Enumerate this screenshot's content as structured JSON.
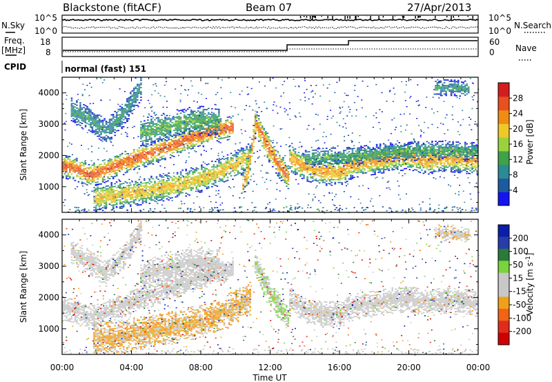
{
  "header": {
    "station": "Blackstone (fitACF)",
    "beam": "Beam 07",
    "date": "27/Apr/2013"
  },
  "top_panels": {
    "nsky_label": "N.Sky",
    "nsearch_label": "N.Search",
    "noise_ticks": [
      "10^5",
      "10^0"
    ],
    "freq_label": "Freq.",
    "freq_unit": "[MHz]",
    "freq_ticks": [
      "18",
      "8"
    ],
    "nave_label": "Nave",
    "nave_ticks": [
      "60",
      "0"
    ],
    "cpid_label": "CPID",
    "cpid_value": "normal (fast) 151"
  },
  "colors": {
    "power": [
      "#1414f0",
      "#1e5aa0",
      "#2a8a96",
      "#3ea24a",
      "#9ad23c",
      "#f0c828",
      "#f08c14",
      "#e8501e",
      "#d21e1e"
    ],
    "velocity": [
      "#0a1eaa",
      "#283caa",
      "#2a7a3a",
      "#7ad23c",
      "#c8c8c8",
      "#c8c8c8",
      "#f0a018",
      "#f06414",
      "#e02c1c",
      "#d00000"
    ]
  },
  "chart_data": [
    {
      "type": "heatmap",
      "quantity": "Power",
      "ylabel": "Slant Range [km]",
      "ylim": [
        180,
        4500
      ],
      "yticks": [
        "1000",
        "2000",
        "3000",
        "4000"
      ],
      "colorbar_label": "Power [dB]",
      "colorbar_ticks": [
        "4",
        "8",
        "12",
        "16",
        "20",
        "24",
        "28"
      ],
      "colorbar_range": [
        0,
        32
      ],
      "xlim": [
        0,
        24
      ],
      "bands": [
        {
          "t": [
            0,
            0.8,
            1.5,
            2.2,
            3,
            4,
            5,
            6,
            7,
            8,
            9,
            9.8
          ],
          "r": [
            1650,
            1550,
            1350,
            1450,
            1650,
            1850,
            2050,
            2250,
            2450,
            2650,
            2800,
            2900
          ],
          "w": 380,
          "peak": 26
        },
        {
          "t": [
            1.8,
            3,
            4,
            5,
            6,
            7,
            8,
            9,
            10,
            10.8
          ],
          "r": [
            620,
            700,
            800,
            880,
            980,
            1100,
            1250,
            1450,
            1700,
            1950
          ],
          "w": 430,
          "peak": 20
        },
        {
          "t": [
            0.5,
            1.5,
            2.5,
            3.5,
            4.5
          ],
          "r": [
            3450,
            3150,
            2750,
            3300,
            4150
          ],
          "w": 400,
          "peak": 10
        },
        {
          "t": [
            4.5,
            6,
            7,
            8,
            9
          ],
          "r": [
            2700,
            2900,
            3050,
            3100,
            3050
          ],
          "w": 450,
          "peak": 13
        },
        {
          "t": [
            11.1,
            11.6,
            12.1,
            12.6,
            13
          ],
          "r": [
            3100,
            2500,
            2000,
            1600,
            1300
          ],
          "w": 420,
          "peak": 25
        },
        {
          "t": [
            10.4,
            10.7,
            10.9,
            11.1
          ],
          "r": [
            1050,
            1500,
            2200,
            2900
          ],
          "w": 420,
          "peak": 23
        },
        {
          "t": [
            13.1,
            14,
            15,
            16,
            16.8,
            18,
            19,
            20,
            21,
            22,
            23,
            24
          ],
          "r": [
            1900,
            1600,
            1450,
            1450,
            1700,
            1800,
            1900,
            1950,
            1800,
            1900,
            1850,
            1800
          ],
          "w": 420,
          "peak": 22
        },
        {
          "t": [
            14,
            16.5,
            19,
            21.5,
            24
          ],
          "r": [
            1900,
            1950,
            2100,
            2150,
            2100
          ],
          "w": 300,
          "peak": 12
        },
        {
          "t": [
            21.5,
            22.5,
            23.5
          ],
          "r": [
            4150,
            4150,
            4100
          ],
          "w": 250,
          "peak": 10
        }
      ]
    },
    {
      "type": "heatmap",
      "quantity": "Velocity",
      "ylabel": "Slant Range [km]",
      "ylim": [
        180,
        4500
      ],
      "yticks": [
        "1000",
        "2000",
        "3000",
        "4000"
      ],
      "colorbar_label": "Velocity [m s^-1]",
      "colorbar_ticks": [
        "200",
        "100",
        "50",
        "15",
        "-15",
        "-50",
        "-100",
        "-200"
      ],
      "colorbar_range": [
        -250,
        250
      ],
      "xlim": [
        0,
        24
      ],
      "xticks": [
        "00:00",
        "04:00",
        "08:00",
        "12:00",
        "16:00",
        "20:00",
        "00:00"
      ],
      "xlabel": "Time UT",
      "bands": [
        {
          "t": [
            0,
            0.8,
            1.5,
            2.2,
            3,
            4,
            5,
            6,
            7,
            8,
            9,
            9.8
          ],
          "r": [
            1650,
            1550,
            1350,
            1450,
            1650,
            1850,
            2050,
            2250,
            2450,
            2650,
            2800,
            2900
          ],
          "w": 380,
          "vel": [
            0,
            -10
          ]
        },
        {
          "t": [
            1.8,
            3,
            4,
            5,
            6,
            7,
            8,
            9,
            10,
            10.8
          ],
          "r": [
            620,
            700,
            800,
            880,
            980,
            1100,
            1250,
            1450,
            1700,
            1950
          ],
          "w": 520,
          "vel": [
            -80,
            -40
          ]
        },
        {
          "t": [
            0.5,
            1.5,
            2.5,
            3.5,
            4.5
          ],
          "r": [
            3450,
            3150,
            2750,
            3300,
            4150
          ],
          "w": 400,
          "vel": [
            0,
            10
          ]
        },
        {
          "t": [
            4.5,
            6,
            7,
            8,
            9
          ],
          "r": [
            2700,
            2900,
            3050,
            3100,
            3050
          ],
          "w": 450,
          "vel": [
            0,
            5
          ]
        },
        {
          "t": [
            11.1,
            11.6,
            12.1,
            12.6,
            13
          ],
          "r": [
            3100,
            2500,
            2000,
            1600,
            1300
          ],
          "w": 420,
          "vel": [
            40,
            60
          ]
        },
        {
          "t": [
            13.1,
            14,
            15,
            16,
            16.8,
            18,
            19,
            20,
            21,
            22,
            23,
            24
          ],
          "r": [
            1900,
            1600,
            1450,
            1450,
            1700,
            1800,
            1900,
            1950,
            1800,
            1900,
            1850,
            1800
          ],
          "w": 420,
          "vel": [
            0,
            5
          ]
        },
        {
          "t": [
            21.5,
            22.5,
            23.5
          ],
          "r": [
            4050,
            4050,
            4000
          ],
          "w": 250,
          "vel": [
            -60,
            0
          ]
        }
      ]
    }
  ]
}
